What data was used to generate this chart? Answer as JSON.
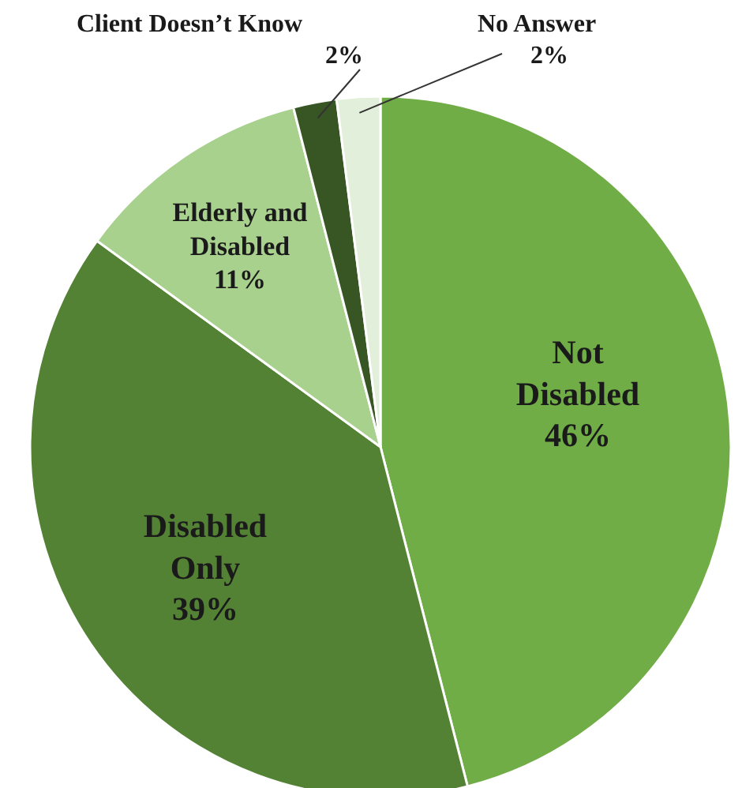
{
  "chart_data": {
    "type": "pie",
    "categories": [
      "Not Disabled",
      "Disabled Only",
      "Elderly and Disabled",
      "Client Doesn’t Know",
      "No Answer"
    ],
    "values": [
      46,
      39,
      11,
      2,
      2
    ],
    "colors": [
      "#70ad47",
      "#548235",
      "#a9d18e",
      "#375623",
      "#e2efda"
    ],
    "value_labels": [
      "46%",
      "39%",
      "11%",
      "2%",
      "2%"
    ]
  }
}
